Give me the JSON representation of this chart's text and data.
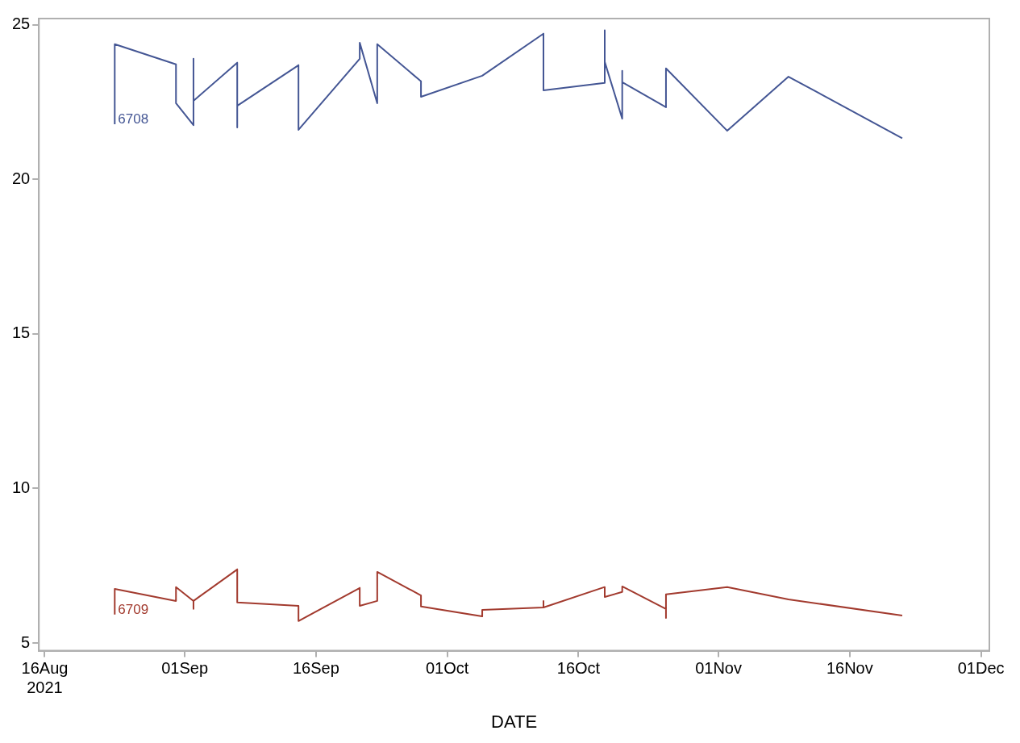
{
  "chart_data": {
    "type": "line",
    "xlabel": "DATE",
    "xlim": [
      "2021-08-15T08:00",
      "2021-12-01T23:00"
    ],
    "xticks": [
      {
        "value": "2021-08-16",
        "label": "16Aug 2021"
      },
      {
        "value": "2021-09-01",
        "label": "01Sep"
      },
      {
        "value": "2021-09-16",
        "label": "16Sep"
      },
      {
        "value": "2021-10-01",
        "label": "01Oct"
      },
      {
        "value": "2021-10-16",
        "label": "16Oct"
      },
      {
        "value": "2021-11-01",
        "label": "01Nov"
      },
      {
        "value": "2021-11-16",
        "label": "16Nov"
      },
      {
        "value": "2021-12-01",
        "label": "01Dec"
      }
    ],
    "ylim": [
      4.75,
      25.2
    ],
    "yticks": [
      5,
      10,
      15,
      20,
      25
    ],
    "grid": false,
    "legend": false,
    "marker": "none",
    "line_style": "solid",
    "series": [
      {
        "name": "6708",
        "color": "#445694",
        "x": [
          "2021-08-24",
          "2021-08-24",
          "2021-08-31",
          "2021-08-31",
          "2021-09-02",
          "2021-09-02",
          "2021-09-02",
          "2021-09-07",
          "2021-09-07",
          "2021-09-07",
          "2021-09-14",
          "2021-09-14",
          "2021-09-21",
          "2021-09-21",
          "2021-09-23",
          "2021-09-23",
          "2021-09-28",
          "2021-09-28",
          "2021-10-05",
          "2021-10-12",
          "2021-10-12",
          "2021-10-19",
          "2021-10-19",
          "2021-10-19",
          "2021-10-21",
          "2021-10-21",
          "2021-10-21",
          "2021-10-26",
          "2021-10-26",
          "2021-11-02",
          "2021-11-09",
          "2021-11-22"
        ],
        "values": [
          21.78,
          24.37,
          23.72,
          22.46,
          21.75,
          23.9,
          22.54,
          23.77,
          21.68,
          22.38,
          23.69,
          21.6,
          23.9,
          24.42,
          22.46,
          24.37,
          23.17,
          22.67,
          23.35,
          24.71,
          22.88,
          23.12,
          24.82,
          23.8,
          21.96,
          23.51,
          23.14,
          22.33,
          23.59,
          21.57,
          23.32,
          21.33
        ]
      },
      {
        "name": "6709",
        "color": "#a23a2e",
        "x": [
          "2021-08-24",
          "2021-08-24",
          "2021-08-31",
          "2021-08-31",
          "2021-09-02",
          "2021-09-02",
          "2021-09-02",
          "2021-09-07",
          "2021-09-07",
          "2021-09-14",
          "2021-09-14",
          "2021-09-21",
          "2021-09-21",
          "2021-09-23",
          "2021-09-23",
          "2021-09-28",
          "2021-09-28",
          "2021-10-05",
          "2021-10-05",
          "2021-10-12",
          "2021-10-12",
          "2021-10-12",
          "2021-10-19",
          "2021-10-19",
          "2021-10-21",
          "2021-10-21",
          "2021-10-26",
          "2021-10-26",
          "2021-10-26",
          "2021-11-02",
          "2021-11-09",
          "2021-11-22"
        ],
        "values": [
          5.92,
          6.75,
          6.36,
          6.81,
          6.36,
          6.1,
          6.36,
          7.38,
          6.31,
          6.2,
          5.71,
          6.78,
          6.2,
          6.36,
          7.3,
          6.54,
          6.18,
          5.86,
          6.07,
          6.15,
          6.36,
          6.15,
          6.81,
          6.49,
          6.65,
          6.83,
          6.1,
          5.81,
          6.57,
          6.81,
          6.41,
          5.89
        ]
      }
    ]
  }
}
